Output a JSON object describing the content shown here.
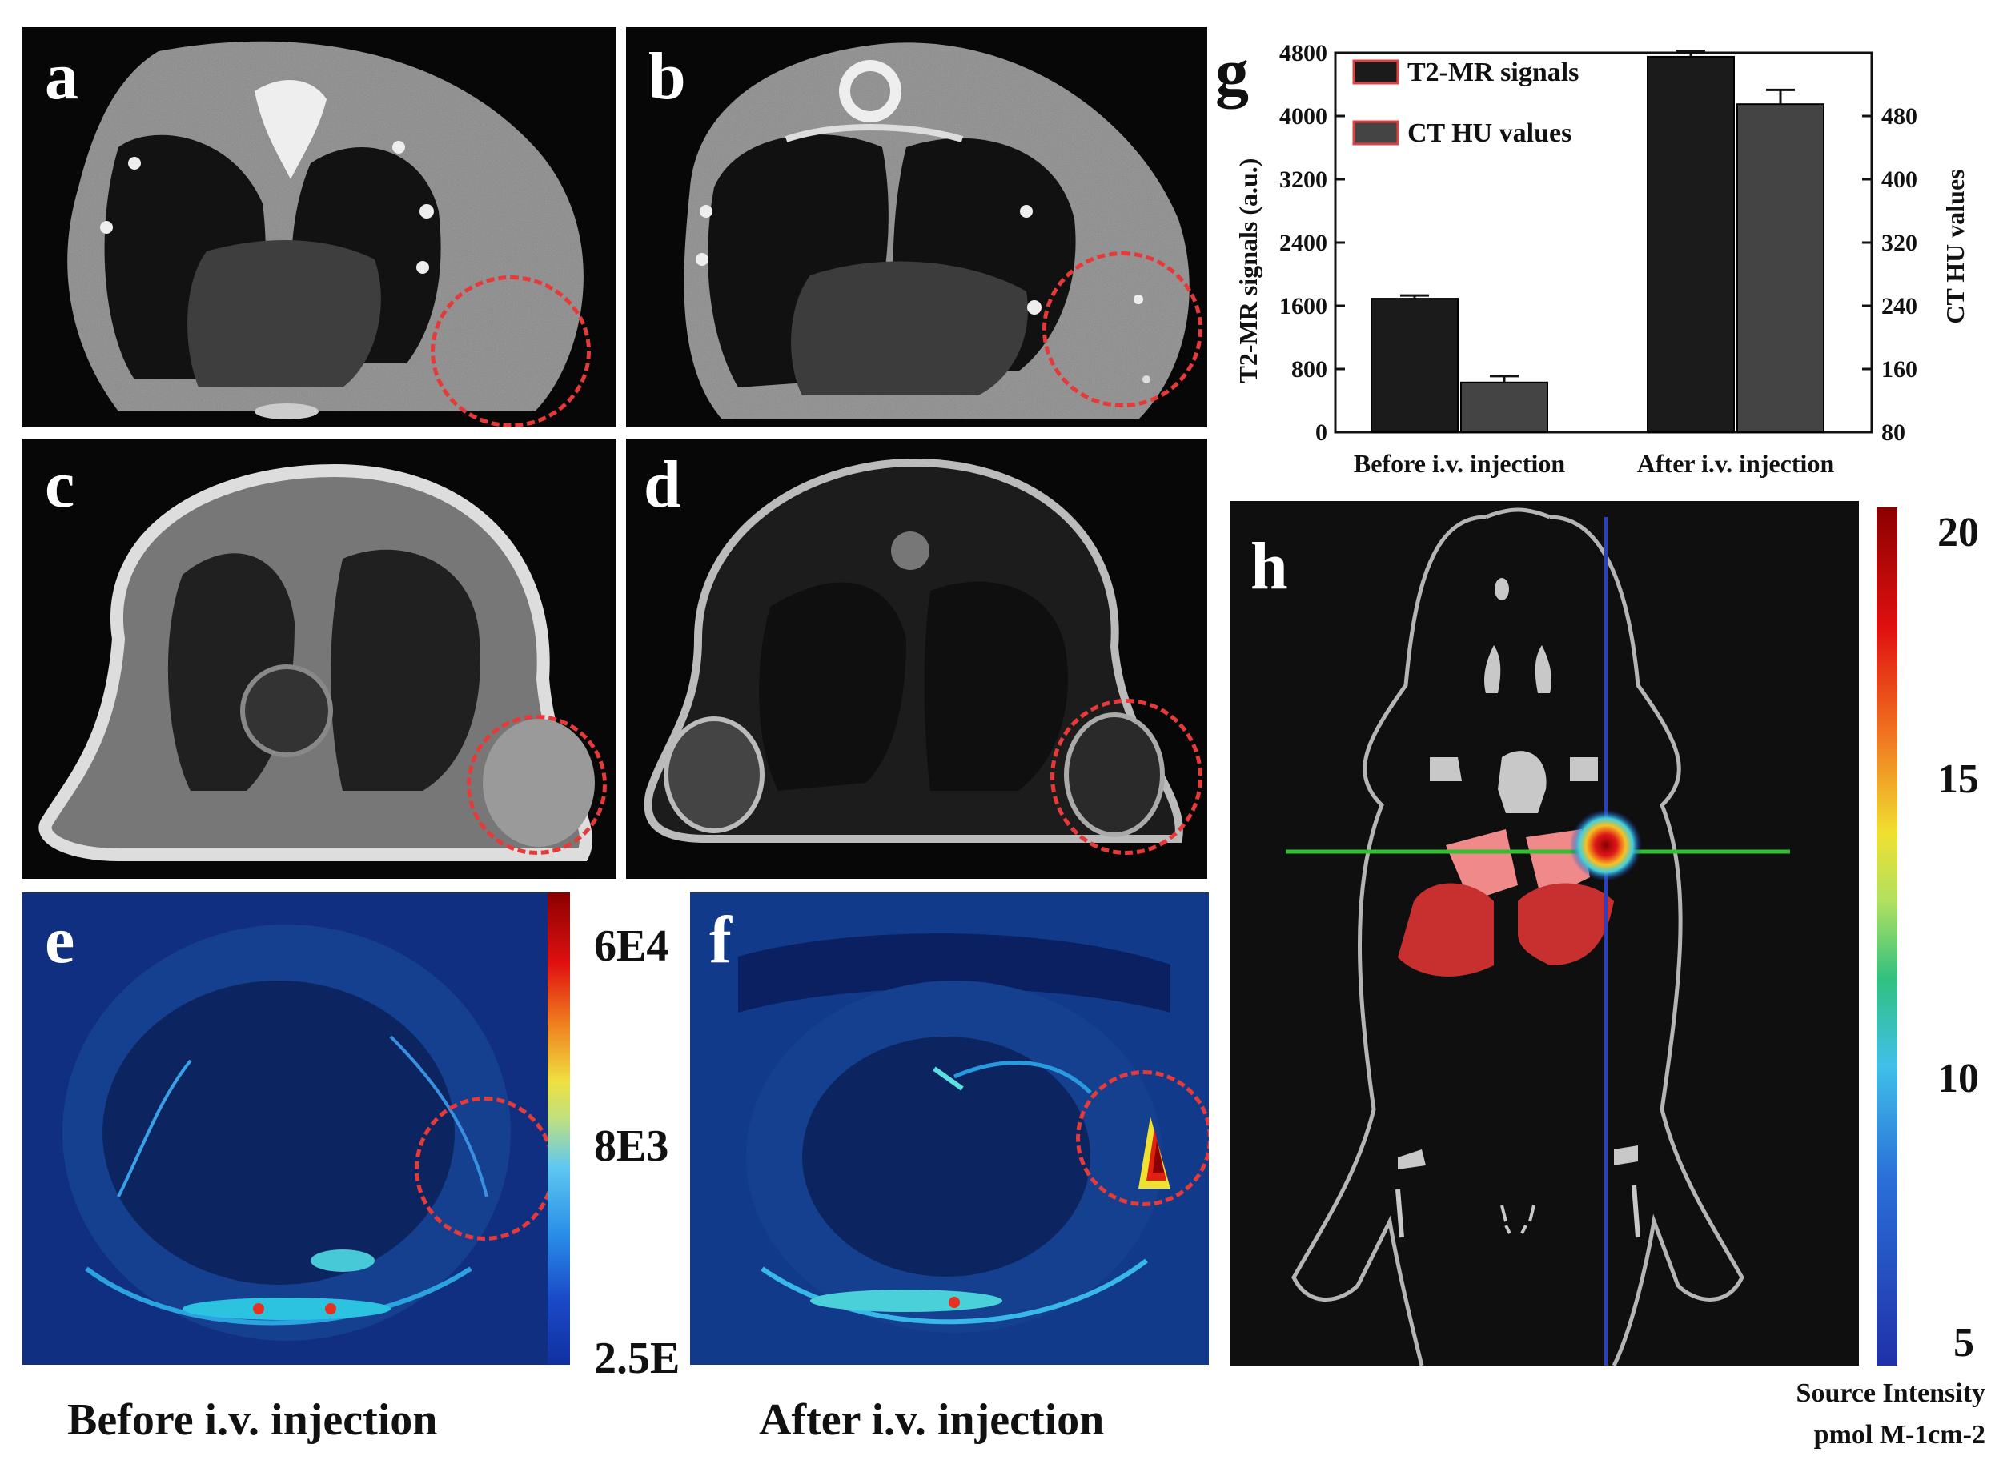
{
  "panels": {
    "a": "a",
    "b": "b",
    "c": "c",
    "d": "d",
    "e": "e",
    "f": "f",
    "g": "g",
    "h": "h"
  },
  "captions": {
    "before": "Before i.v. injection",
    "after": "After i.v. injection"
  },
  "colorbar_e": {
    "labels": [
      "6E4",
      "8E3",
      "2.5E"
    ]
  },
  "colorbar_h": {
    "ticks": [
      "20",
      "15",
      "10",
      "5"
    ],
    "title_line1": "Source Intensity",
    "title_line2": "pmol M-1cm-2"
  },
  "chart_data": {
    "type": "bar",
    "categories": [
      "Before i.v. injection",
      "After i.v. injection"
    ],
    "series": [
      {
        "name": "T2-MR signals",
        "axis": "left",
        "values": [
          1690,
          4750
        ],
        "errors": [
          40,
          70
        ],
        "color": "#1b1b1b"
      },
      {
        "name": "CT HU values",
        "axis": "right",
        "values": [
          143,
          495
        ],
        "errors": [
          8,
          18
        ],
        "color": "#444444"
      }
    ],
    "ylabel": "T2-MR signals (a.u.)",
    "y2label": "CT HU values",
    "ylim": [
      0,
      4800
    ],
    "y2lim": [
      80,
      560
    ],
    "yticks": [
      0,
      800,
      1600,
      2400,
      3200,
      4000,
      4800
    ],
    "y2ticks": [
      80,
      160,
      240,
      320,
      400,
      480
    ]
  }
}
